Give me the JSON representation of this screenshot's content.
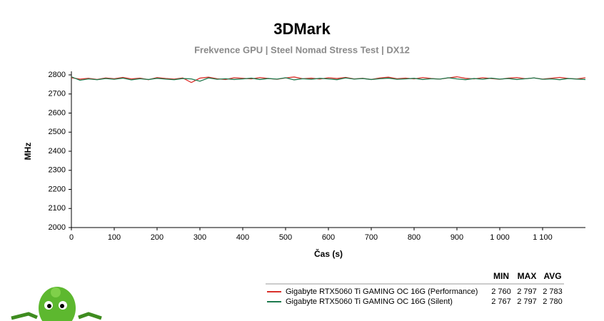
{
  "chart_data": {
    "type": "line",
    "title": "3DMark",
    "subtitle": "Frekvence GPU | Steel Nomad Stress Test | DX12",
    "x_label": "Čas (s)",
    "y_label": "MHz",
    "grid": false,
    "xlim": [
      0,
      1200
    ],
    "ylim": [
      2000,
      2800
    ],
    "xticks": [
      0,
      100,
      200,
      300,
      400,
      500,
      600,
      700,
      800,
      900,
      {
        "value": 1000,
        "label": "1 000"
      },
      {
        "value": 1100,
        "label": "1 100"
      }
    ],
    "yticks": [
      2000,
      2100,
      2200,
      2300,
      2400,
      2500,
      2600,
      2700,
      2800
    ],
    "x": [
      0,
      20,
      40,
      60,
      80,
      100,
      120,
      140,
      160,
      180,
      200,
      220,
      240,
      260,
      280,
      300,
      320,
      340,
      360,
      380,
      400,
      420,
      440,
      460,
      480,
      500,
      520,
      540,
      560,
      580,
      600,
      620,
      640,
      660,
      680,
      700,
      720,
      740,
      760,
      780,
      800,
      820,
      840,
      860,
      880,
      900,
      920,
      940,
      960,
      980,
      1000,
      1020,
      1040,
      1060,
      1080,
      1100,
      1120,
      1140,
      1160,
      1180,
      1200
    ],
    "stats_header": [
      "MIN",
      "MAX",
      "AVG"
    ],
    "series": [
      {
        "name": "Gigabyte RTX5060 Ti GAMING OC 16G (Performance)",
        "color": "#d9302a",
        "stats": [
          "2 760",
          "2 797",
          "2 783"
        ],
        "values": [
          2785,
          2778,
          2782,
          2776,
          2784,
          2780,
          2787,
          2779,
          2783,
          2775,
          2786,
          2781,
          2778,
          2784,
          2760,
          2783,
          2788,
          2780,
          2776,
          2785,
          2782,
          2779,
          2786,
          2781,
          2777,
          2784,
          2789,
          2780,
          2783,
          2778,
          2785,
          2781,
          2787,
          2779,
          2782,
          2776,
          2784,
          2788,
          2780,
          2783,
          2779,
          2786,
          2781,
          2778,
          2784,
          2790,
          2782,
          2779,
          2785,
          2781,
          2777,
          2783,
          2786,
          2780,
          2784,
          2778,
          2782,
          2787,
          2781,
          2779,
          2785
        ]
      },
      {
        "name": "Gigabyte RTX5060 Ti GAMING OC 16G (Silent)",
        "color": "#1e7a4e",
        "stats": [
          "2 767",
          "2 797",
          "2 780"
        ],
        "values": [
          2790,
          2772,
          2779,
          2775,
          2781,
          2777,
          2783,
          2774,
          2780,
          2776,
          2782,
          2778,
          2775,
          2781,
          2779,
          2767,
          2784,
          2777,
          2780,
          2776,
          2779,
          2783,
          2776,
          2781,
          2778,
          2785,
          2774,
          2780,
          2777,
          2782,
          2779,
          2775,
          2784,
          2778,
          2781,
          2776,
          2780,
          2783,
          2777,
          2779,
          2782,
          2776,
          2780,
          2778,
          2785,
          2779,
          2775,
          2781,
          2777,
          2783,
          2778,
          2781,
          2776,
          2780,
          2784,
          2777,
          2779,
          2775,
          2781,
          2778,
          2776
        ]
      }
    ]
  }
}
